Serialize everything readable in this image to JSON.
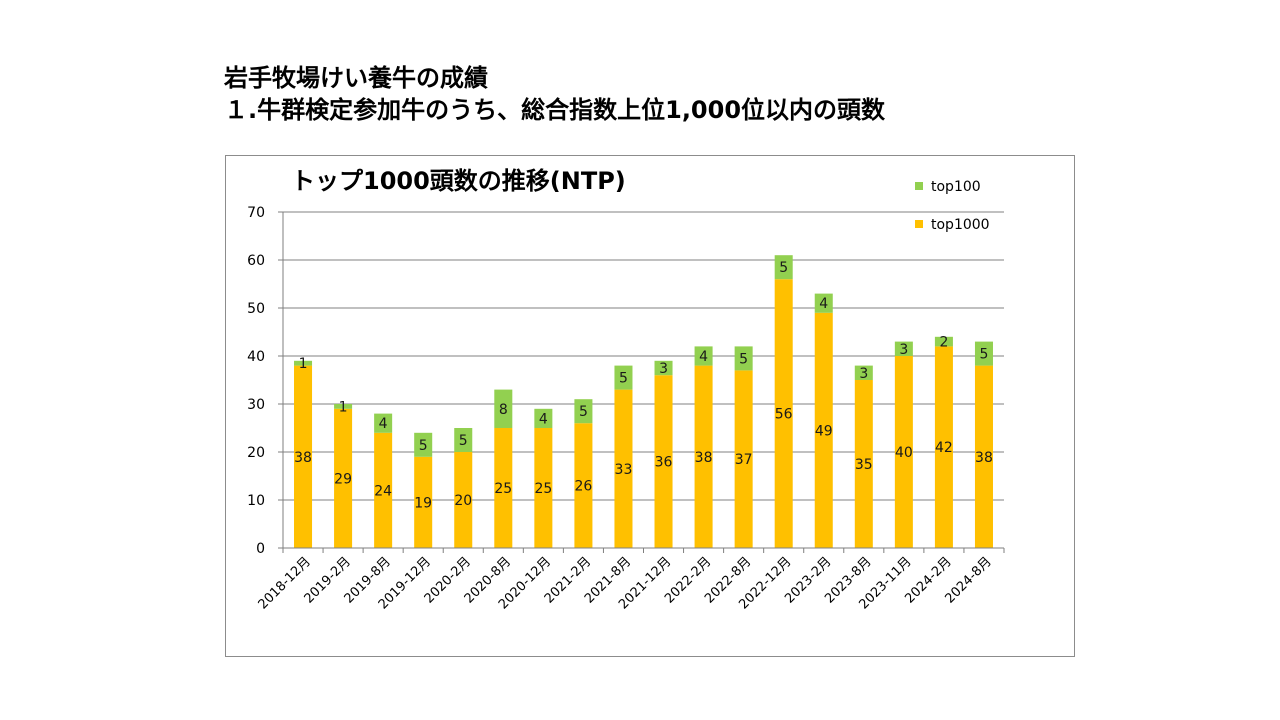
{
  "slide": {
    "title_line1": "岩手牧場けい養牛の成績",
    "title_line2": "１.牛群検定参加牛のうち、総合指数上位1,000位以内の頭数"
  },
  "colors": {
    "top1000": "#FFC000",
    "top100": "#92D050",
    "grid": "#808080",
    "axis": "#7f7f7f"
  },
  "chart_data": {
    "type": "bar",
    "stacked": true,
    "title": "トップ1000頭数の推移(NTP)",
    "xlabel": "",
    "ylabel": "",
    "ylim": [
      0,
      70
    ],
    "yticks": [
      0,
      10,
      20,
      30,
      40,
      50,
      60,
      70
    ],
    "grid": true,
    "legend_position": "top-right",
    "categories": [
      "2018-12月",
      "2019-2月",
      "2019-8月",
      "2019-12月",
      "2020-2月",
      "2020-8月",
      "2020-12月",
      "2021-2月",
      "2021-8月",
      "2021-12月",
      "2022-2月",
      "2022-8月",
      "2022-12月",
      "2023-2月",
      "2023-8月",
      "2023-11月",
      "2024-2月",
      "2024-8月"
    ],
    "series": [
      {
        "name": "top1000",
        "values": [
          38,
          29,
          24,
          19,
          20,
          25,
          25,
          26,
          33,
          36,
          38,
          37,
          56,
          49,
          35,
          40,
          42,
          38
        ]
      },
      {
        "name": "top100",
        "values": [
          1,
          1,
          4,
          5,
          5,
          8,
          4,
          5,
          5,
          3,
          4,
          5,
          5,
          4,
          3,
          3,
          2,
          5
        ]
      }
    ]
  }
}
